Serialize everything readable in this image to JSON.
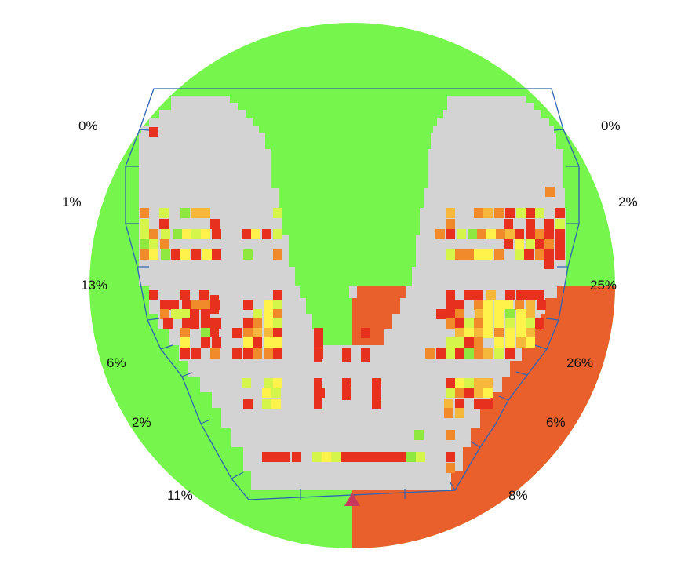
{
  "chart_data": {
    "type": "heatmap",
    "title": "",
    "colors": {
      "background_left": "#76f54d",
      "background_right": "#e9602d",
      "unused": "#d3d3d3",
      "outline": "#2e64b4",
      "marker": "#c8385e"
    },
    "zones": [
      {
        "side": "left",
        "label": "0%",
        "value": 0
      },
      {
        "side": "left",
        "label": "1%",
        "value": 1
      },
      {
        "side": "left",
        "label": "13%",
        "value": 13
      },
      {
        "side": "left",
        "label": "6%",
        "value": 6
      },
      {
        "side": "left",
        "label": "2%",
        "value": 2
      },
      {
        "side": "left",
        "label": "11%",
        "value": 11
      },
      {
        "side": "right",
        "label": "0%",
        "value": 0
      },
      {
        "side": "right",
        "label": "2%",
        "value": 2
      },
      {
        "side": "right",
        "label": "25%",
        "value": 25
      },
      {
        "side": "right",
        "label": "26%",
        "value": 26
      },
      {
        "side": "right",
        "label": "6%",
        "value": 6
      },
      {
        "side": "right",
        "label": "8%",
        "value": 8
      }
    ]
  }
}
